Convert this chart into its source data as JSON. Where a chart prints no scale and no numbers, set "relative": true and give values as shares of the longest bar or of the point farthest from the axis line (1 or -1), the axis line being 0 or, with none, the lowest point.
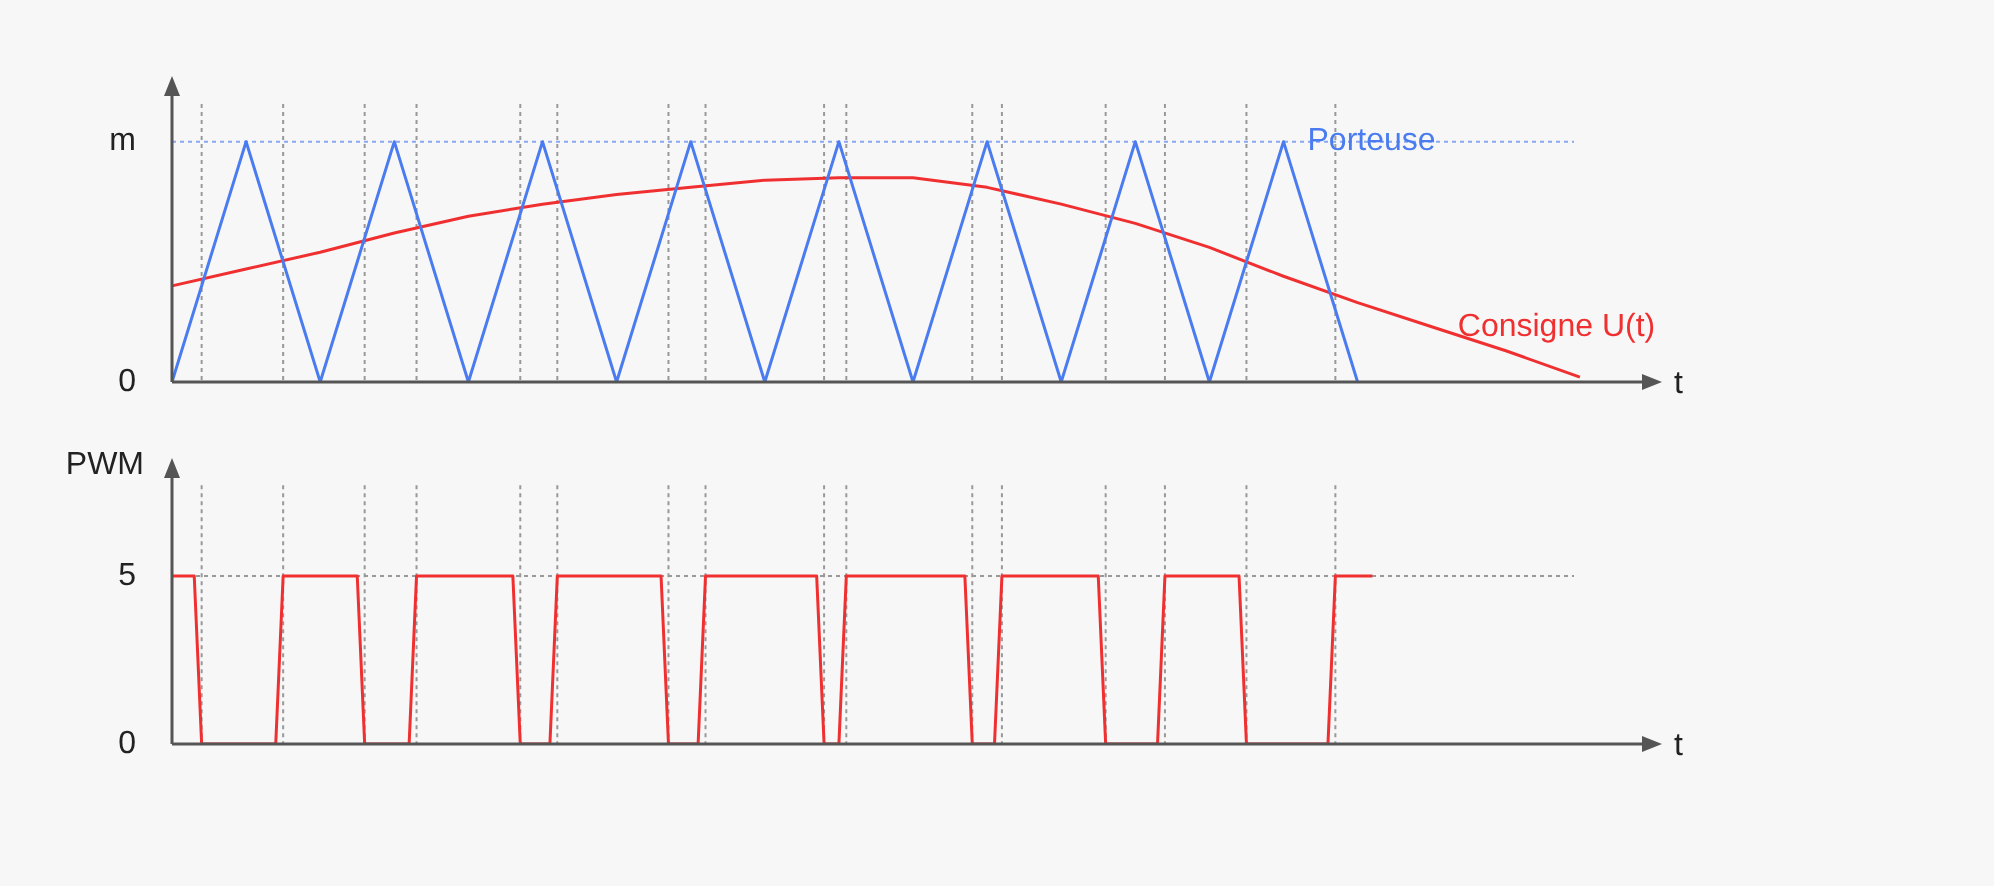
{
  "chart_data": [
    {
      "type": "line",
      "xlabel": "t",
      "categories": [
        null,
        null,
        null,
        null,
        null,
        null,
        null,
        null,
        null,
        null,
        null,
        null,
        null,
        null,
        null,
        null,
        null,
        null,
        null,
        null,
        null
      ],
      "relative": true,
      "annotations": [
        "0"
      ],
      "tick_labels": false,
      "legend": false,
      "marker": "none",
      "series": [
        {
          "name": "Porteuse",
          "color": "#4a7cf0",
          "values": [
            0,
            1,
            0,
            1,
            0,
            1,
            0,
            1,
            0,
            1,
            0,
            1,
            0,
            1,
            0,
            1,
            0,
            null,
            null,
            null,
            null
          ]
        },
        {
          "name": "Consigne U(t)",
          "color": "#f03030",
          "values": [
            0.4,
            0.47,
            0.54,
            0.62,
            0.69,
            0.74,
            0.78,
            0.81,
            0.84,
            0.85,
            0.85,
            0.81,
            0.74,
            0.66,
            0.56,
            0.44,
            0.33,
            0.23,
            0.13,
            0.02,
            null
          ]
        }
      ],
      "ref_lines": [
        {
          "axis": "y",
          "value": 1,
          "label": "m",
          "color": "#8aa8f0",
          "line_style": "dotted"
        }
      ]
    },
    {
      "type": "line",
      "xlabel": "t",
      "ylabel": "PWM",
      "categories": [
        null,
        null,
        null,
        null,
        null,
        null,
        null,
        null,
        null,
        null,
        null,
        null,
        null,
        null,
        null,
        null,
        null,
        null,
        null,
        null,
        null,
        null,
        null,
        null,
        null,
        null,
        null,
        null,
        null,
        null,
        null,
        null,
        null,
        null,
        null,
        null,
        null,
        null,
        null,
        null,
        null,
        null,
        null,
        null,
        null,
        null,
        null,
        null,
        null,
        null,
        null,
        null,
        null,
        null,
        null,
        null,
        null,
        null,
        null,
        null,
        null,
        null,
        null,
        null,
        null,
        null,
        null,
        null,
        null,
        null,
        null,
        null,
        null,
        null,
        null,
        null,
        null,
        null,
        null,
        null,
        null,
        null,
        null,
        null,
        null,
        null,
        null,
        null,
        null,
        null,
        null,
        null,
        null,
        null,
        null,
        null,
        null,
        null,
        null,
        null,
        null,
        null,
        null,
        null,
        null,
        null,
        null,
        null,
        null,
        null,
        null,
        null,
        null,
        null,
        null,
        null,
        null,
        null,
        null,
        null,
        null,
        null,
        null,
        null,
        null,
        null,
        null,
        null,
        null,
        null,
        null,
        null,
        null,
        null,
        null,
        null,
        null,
        null,
        null,
        null,
        null,
        null,
        null,
        null,
        null,
        null,
        null,
        null,
        null,
        null,
        null,
        null,
        null,
        null,
        null,
        null,
        null,
        null,
        null,
        null,
        null,
        null,
        null,
        null,
        null,
        null,
        null,
        null,
        null,
        null,
        null,
        null,
        null,
        null,
        null,
        null,
        null,
        null,
        null,
        null,
        null,
        null,
        null,
        null,
        null,
        null,
        null,
        null,
        null,
        null,
        null,
        null,
        null,
        null,
        null,
        null,
        null,
        null,
        null,
        null,
        null
      ],
      "ylim": [
        0,
        8.3
      ],
      "yticks": [
        0,
        5
      ],
      "tick_labels": "y",
      "legend": false,
      "marker": "none",
      "series": [
        {
          "color": "#f03030",
          "values": [
            5,
            5,
            5,
            5,
            0,
            0,
            0,
            0,
            0,
            0,
            0,
            0,
            0,
            0,
            0,
            5,
            5,
            5,
            5,
            5,
            5,
            5,
            5,
            5,
            5,
            5,
            0,
            0,
            0,
            0,
            0,
            0,
            0,
            5,
            5,
            5,
            5,
            5,
            5,
            5,
            5,
            5,
            5,
            5,
            5,
            5,
            5,
            0,
            0,
            0,
            0,
            0,
            5,
            5,
            5,
            5,
            5,
            5,
            5,
            5,
            5,
            5,
            5,
            5,
            5,
            5,
            5,
            0,
            0,
            0,
            0,
            0,
            5,
            5,
            5,
            5,
            5,
            5,
            5,
            5,
            5,
            5,
            5,
            5,
            5,
            5,
            5,
            5,
            0,
            0,
            0,
            5,
            5,
            5,
            5,
            5,
            5,
            5,
            5,
            5,
            5,
            5,
            5,
            5,
            5,
            5,
            5,
            5,
            0,
            0,
            0,
            0,
            5,
            5,
            5,
            5,
            5,
            5,
            5,
            5,
            5,
            5,
            5,
            5,
            5,
            5,
            0,
            0,
            0,
            0,
            0,
            0,
            0,
            0,
            5,
            5,
            5,
            5,
            5,
            5,
            5,
            5,
            5,
            5,
            5,
            0,
            0,
            0,
            0,
            0,
            0,
            0,
            0,
            0,
            0,
            0,
            0,
            5,
            5,
            5,
            5,
            5,
            5,
            null,
            null,
            null,
            null,
            null,
            null,
            null,
            null,
            null,
            null,
            null,
            null,
            null,
            null,
            null,
            null,
            null,
            null,
            null,
            null,
            null,
            null,
            null,
            null,
            null,
            null,
            null,
            null,
            null,
            null,
            null,
            null,
            null,
            null,
            null,
            null,
            null,
            null
          ]
        }
      ],
      "ref_lines": [
        {
          "axis": "y",
          "value": 5,
          "color": "#999999",
          "line_style": "dotted"
        }
      ]
    }
  ]
}
